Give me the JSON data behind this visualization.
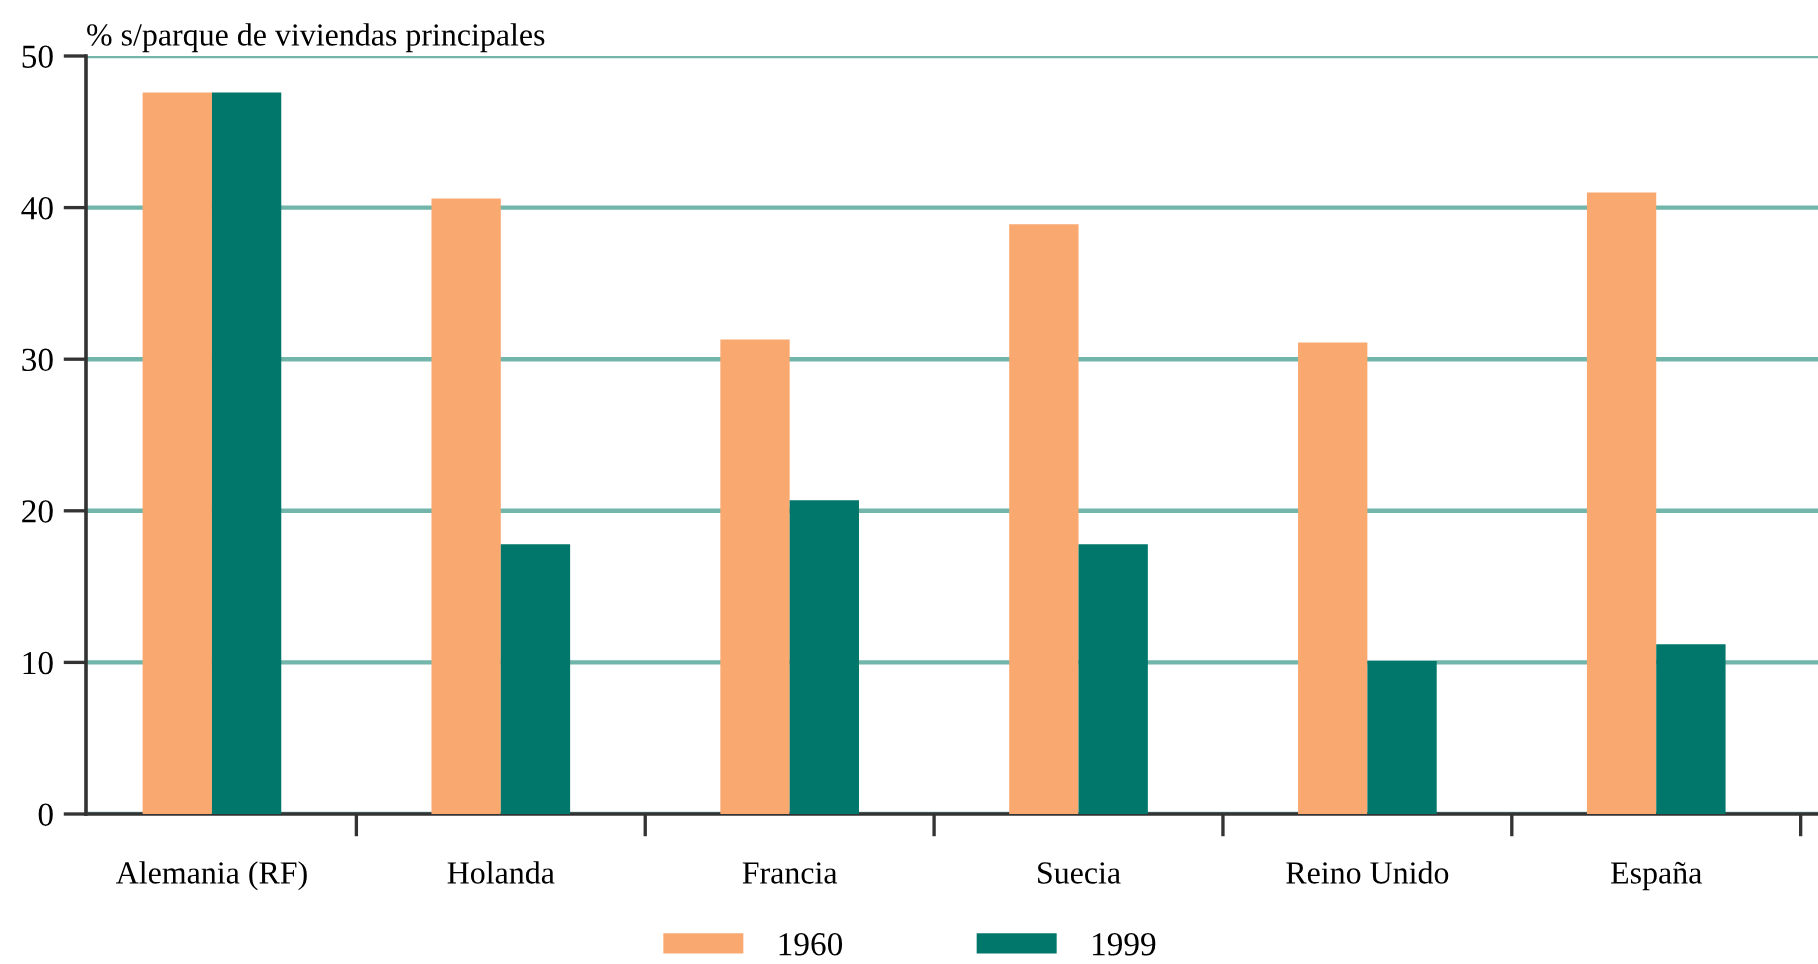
{
  "chart_data": {
    "type": "bar",
    "ylabel": "% s/parque de viviendas principales",
    "categories": [
      "Alemania (RF)",
      "Holanda",
      "Francia",
      "Suecia",
      "Reino Unido",
      "España"
    ],
    "series": [
      {
        "name": "1960",
        "color": "#f9a870",
        "values": [
          47.6,
          40.6,
          31.3,
          38.9,
          31.1,
          41.0
        ]
      },
      {
        "name": "1999",
        "color": "#00776a",
        "values": [
          47.6,
          17.8,
          20.7,
          17.8,
          10.1,
          11.2
        ]
      }
    ],
    "ylim": [
      0,
      50
    ],
    "yticks": [
      0,
      10,
      20,
      30,
      40,
      50
    ],
    "grid": "y",
    "legend": "bottom"
  }
}
